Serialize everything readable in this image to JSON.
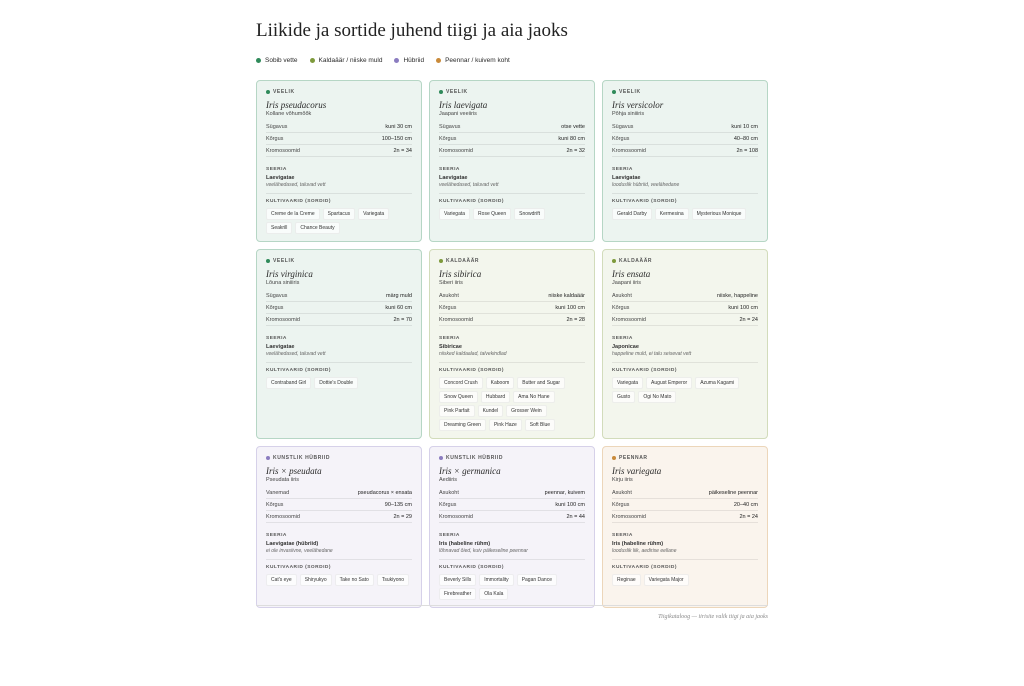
{
  "header": {
    "title": "Liikide ja sortide juhend tiigi ja aia jaoks"
  },
  "legend": [
    {
      "label": "Sobib vette",
      "color": "#2f8a5a"
    },
    {
      "label": "Kaldaäär / niiske muld",
      "color": "#7e9a3c"
    },
    {
      "label": "Hübriid",
      "color": "#8b7cc0"
    },
    {
      "label": "Peennar / kuivem koht",
      "color": "#c98a3a"
    }
  ],
  "cards": [
    {
      "tag": "VEELIK",
      "color": "#2f8a5a",
      "name": "Iris pseudacorus",
      "common": "Kollane võhumõõk",
      "rows": [
        [
          "Sügavus",
          "kuni 30 cm"
        ],
        [
          "Kõrgus",
          "100–150 cm"
        ],
        [
          "Kromosoomid",
          "2n = 34"
        ]
      ],
      "series_label": "SEERIA",
      "series_name": "Laevigatae",
      "series_note": "veelähedased, taluvad vett",
      "cultivars_label": "KULTIVAARID (SORDID)",
      "cultivars": [
        "Creme de la Creme",
        "Spartacus",
        "Variegata",
        "Seakrill",
        "Chance Beauty"
      ]
    },
    {
      "tag": "VEELIK",
      "color": "#2f8a5a",
      "name": "Iris laevigata",
      "common": "Jaapani veeiiris",
      "rows": [
        [
          "Sügavus",
          "otse vette"
        ],
        [
          "Kõrgus",
          "kuni 80 cm"
        ],
        [
          "Kromosoomid",
          "2n = 32"
        ]
      ],
      "series_label": "SEERIA",
      "series_name": "Laevigatae",
      "series_note": "veelähedased, taluvad vett",
      "cultivars_label": "KULTIVAARID (SORDID)",
      "cultivars": [
        "Variegata",
        "Rose Queen",
        "Snowdrift"
      ]
    },
    {
      "tag": "VEELIK",
      "color": "#2f8a5a",
      "name": "Iris versicolor",
      "common": "Põhja siniiiris",
      "rows": [
        [
          "Sügavus",
          "kuni 10 cm"
        ],
        [
          "Kõrgus",
          "40–80 cm"
        ],
        [
          "Kromosoomid",
          "2n = 108"
        ]
      ],
      "series_label": "SEERIA",
      "series_name": "Laevigatae",
      "series_note": "looduslik hübriid, veelähedane",
      "cultivars_label": "KULTIVAARID (SORDID)",
      "cultivars": [
        "Gerald Darby",
        "Kermesina",
        "Mysterious Monique"
      ]
    },
    {
      "tag": "VEELIK",
      "color": "#2f8a5a",
      "name": "Iris virginica",
      "common": "Lõuna siniiiris",
      "rows": [
        [
          "Sügavus",
          "märg muld"
        ],
        [
          "Kõrgus",
          "kuni 60 cm"
        ],
        [
          "Kromosoomid",
          "2n = 70"
        ]
      ],
      "series_label": "SEERIA",
      "series_name": "Laevigatae",
      "series_note": "veelähedased, taluvad vett",
      "cultivars_label": "KULTIVAARID (SORDID)",
      "cultivars": [
        "Contraband Girl",
        "Dottie's Double"
      ]
    },
    {
      "tag": "KALDAÄÄR",
      "color": "#7e9a3c",
      "name": "Iris sibirica",
      "common": "Siberi iiris",
      "rows": [
        [
          "Asukoht",
          "niiske kaldaäär"
        ],
        [
          "Kõrgus",
          "kuni 100 cm"
        ],
        [
          "Kromosoomid",
          "2n = 28"
        ]
      ],
      "series_label": "SEERIA",
      "series_name": "Sibiricae",
      "series_note": "niisked kaldaalad, talvekindlad",
      "cultivars_label": "KULTIVAARID (SORDID)",
      "cultivars": [
        "Concord Crush",
        "Kaboom",
        "Butter and Sugar",
        "Snow Queen",
        "Hubbard",
        "Ama No Hane",
        "Pink Parfait",
        "Kundel",
        "Grosser Wein",
        "Dreaming Green",
        "Pink Haze",
        "Soft Blue"
      ]
    },
    {
      "tag": "KALDAÄÄR",
      "color": "#7e9a3c",
      "name": "Iris ensata",
      "common": "Jaapani iiris",
      "rows": [
        [
          "Asukoht",
          "niiske, happeline"
        ],
        [
          "Kõrgus",
          "kuni 100 cm"
        ],
        [
          "Kromosoomid",
          "2n = 24"
        ]
      ],
      "series_label": "SEERIA",
      "series_name": "Japonicae",
      "series_note": "happeline muld, ei talu seisevat vett",
      "cultivars_label": "KULTIVAARID (SORDID)",
      "cultivars": [
        "Variegata",
        "August Emperor",
        "Azuma Kagami",
        "Gusto",
        "Ogi No Mato"
      ]
    },
    {
      "tag": "KUNSTLIK HÜBRIID",
      "color": "#8b7cc0",
      "name": "Iris × pseudata",
      "common": "Pseudata iiris",
      "rows": [
        [
          "Vanemad",
          "pseudacorus × ensata"
        ],
        [
          "Kõrgus",
          "90–135 cm"
        ],
        [
          "Kromosoomid",
          "2n = 29"
        ]
      ],
      "series_label": "SEERIA",
      "series_name": "Laevigatae (hübriid)",
      "series_note": "ei ole invasiivne, veelähedane",
      "cultivars_label": "KULTIVAARID (SORDID)",
      "cultivars": [
        "Cat's eye",
        "Shiryukyo",
        "Take no Sato",
        "Tsukiyono"
      ]
    },
    {
      "tag": "KUNSTLIK HÜBRIID",
      "color": "#8b7cc0",
      "name": "Iris × germanica",
      "common": "Aediiris",
      "rows": [
        [
          "Asukoht",
          "peennar, kuivem"
        ],
        [
          "Kõrgus",
          "kuni 100 cm"
        ],
        [
          "Kromosoomid",
          "2n = 44"
        ]
      ],
      "series_label": "SEERIA",
      "series_name": "Iris (habeline rühm)",
      "series_note": "lõhnavad õied, kuiv päikeseline peennar",
      "cultivars_label": "KULTIVAARID (SORDID)",
      "cultivars": [
        "Beverly Sills",
        "Immortality",
        "Pagan Dance",
        "Firebreather",
        "Ola Kala"
      ]
    },
    {
      "tag": "PEENNAR",
      "color": "#c98a3a",
      "name": "Iris variegata",
      "common": "Kirju iiris",
      "rows": [
        [
          "Asukoht",
          "päikeseline peennar"
        ],
        [
          "Kõrgus",
          "20–40 cm"
        ],
        [
          "Kromosoomid",
          "2n = 24"
        ]
      ],
      "series_label": "SEERIA",
      "series_name": "Iris (habeline rühm)",
      "series_note": "looduslik liik, aedirise eellane",
      "cultivars_label": "KULTIVAARID (SORDID)",
      "cultivars": [
        "Reginae",
        "Variegata Major"
      ]
    }
  ],
  "footer": {
    "text": "Tiigikataloog — iirisite valik tiigi ja aia jaoks"
  }
}
